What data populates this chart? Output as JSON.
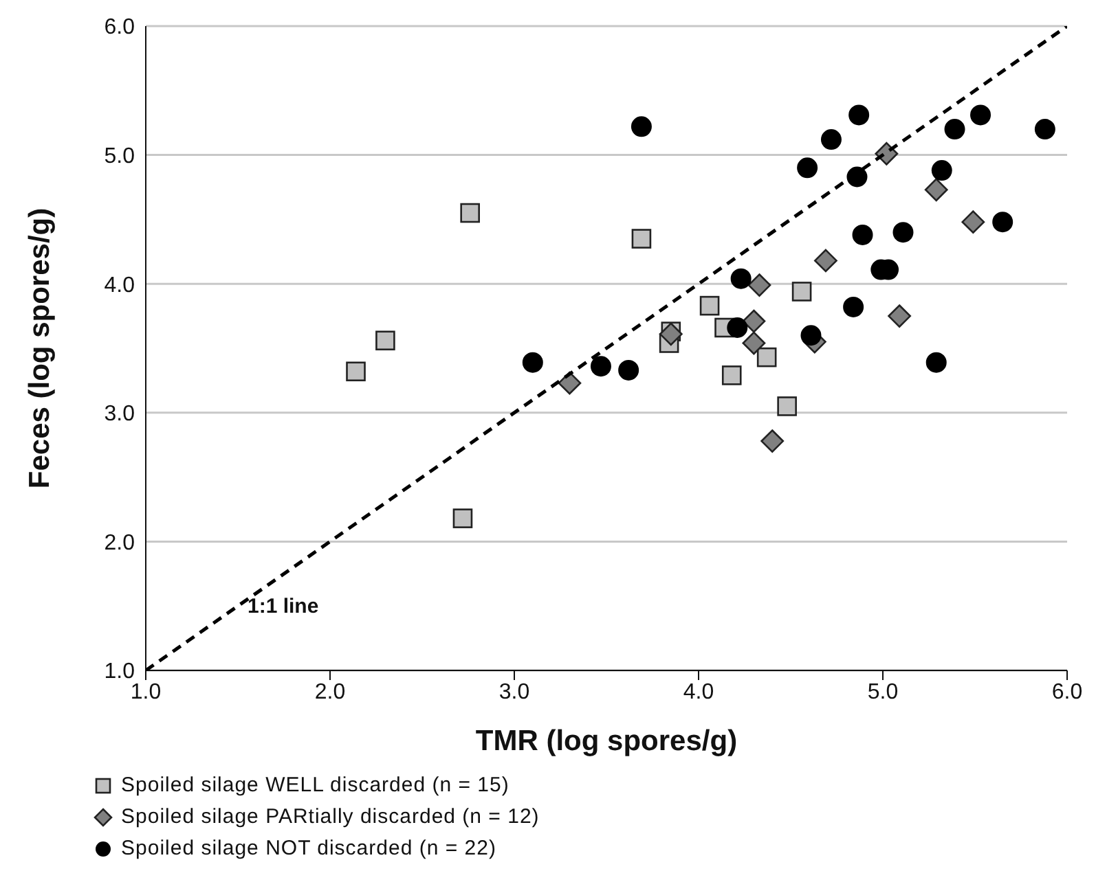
{
  "chart_data": {
    "type": "scatter",
    "xlabel": "TMR (log spores/g)",
    "ylabel": "Feces (log spores/g)",
    "xlim": [
      1,
      6
    ],
    "ylim": [
      1,
      6
    ],
    "xticks": [
      {
        "value": 1,
        "label": "1.0"
      },
      {
        "value": 2,
        "label": "2.0"
      },
      {
        "value": 3,
        "label": "3.0"
      },
      {
        "value": 4,
        "label": "4.0"
      },
      {
        "value": 5,
        "label": "5.0"
      },
      {
        "value": 6,
        "label": "6.0"
      }
    ],
    "yticks": [
      {
        "value": 1,
        "label": "1.0"
      },
      {
        "value": 2,
        "label": "2.0"
      },
      {
        "value": 3,
        "label": "3.0"
      },
      {
        "value": 4,
        "label": "4.0"
      },
      {
        "value": 5,
        "label": "5.0"
      },
      {
        "value": 6,
        "label": "6.0"
      }
    ],
    "grid": "y",
    "legend": "bottom left",
    "annotations": [
      "1:1 line"
    ],
    "series": [
      {
        "name": "Spoiled silage WELL discarded (n = 15)",
        "marker": "square",
        "color": "#c0c0c0",
        "x": [
          2.76,
          2.3,
          2.14,
          2.72,
          3.69,
          4.06,
          3.85,
          3.84,
          4.14,
          4.56,
          4.37,
          4.18,
          4.48
        ],
        "values": [
          4.55,
          3.56,
          3.32,
          2.18,
          4.35,
          3.83,
          3.63,
          3.54,
          3.66,
          3.94,
          3.43,
          3.29,
          3.05
        ]
      },
      {
        "name": "Spoiled silage PARtially discarded (n = 12)",
        "marker": "diamond",
        "color": "#808080",
        "x": [
          3.3,
          3.85,
          4.33,
          4.3,
          4.3,
          4.4,
          4.63,
          4.69,
          5.09,
          5.02,
          5.29,
          5.49
        ],
        "values": [
          3.23,
          3.61,
          3.99,
          3.71,
          3.54,
          2.78,
          3.55,
          4.18,
          3.75,
          5.01,
          4.73,
          4.48
        ]
      },
      {
        "name": "Spoiled silage NOT discarded (n = 22)",
        "marker": "circle",
        "color": "#000000",
        "x": [
          3.1,
          3.47,
          3.62,
          3.69,
          4.21,
          4.23,
          4.59,
          4.61,
          4.72,
          4.84,
          4.86,
          4.87,
          4.89,
          4.99,
          5.03,
          5.11,
          5.29,
          5.32,
          5.39,
          5.53,
          5.65,
          5.88
        ],
        "values": [
          3.39,
          3.36,
          3.33,
          5.22,
          3.66,
          4.04,
          4.9,
          3.6,
          5.12,
          3.82,
          4.83,
          5.31,
          4.38,
          4.11,
          4.11,
          4.4,
          3.39,
          4.88,
          5.2,
          5.31,
          4.48,
          5.2
        ]
      },
      {
        "type": "line",
        "marker": "none",
        "line_style": "dashed",
        "color": "#000000",
        "x": [
          1,
          6
        ],
        "values": [
          1,
          6
        ]
      }
    ]
  }
}
